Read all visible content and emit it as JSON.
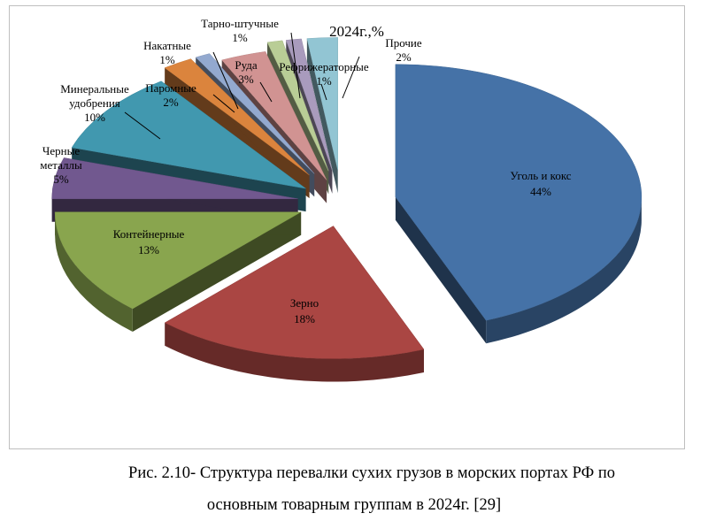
{
  "chart_data": {
    "type": "pie",
    "title": "2024г.,%",
    "start_angle_deg": 90,
    "slices": [
      {
        "label": "Уголь и кокс",
        "value": 44,
        "value_label": "44%",
        "color": "#4572a7"
      },
      {
        "label": "Зерно",
        "value": 18,
        "value_label": "18%",
        "color": "#aa4643"
      },
      {
        "label": "Контейнерные",
        "value": 13,
        "value_label": "13%",
        "color": "#89a54e"
      },
      {
        "label": "Черные металлы",
        "value": 5,
        "value_label": "5%",
        "color": "#71588f"
      },
      {
        "label": "Минеральные удобрения",
        "value": 10,
        "value_label": "10%",
        "color": "#4198af"
      },
      {
        "label": "Паромные",
        "value": 2,
        "value_label": "2%",
        "color": "#db843d"
      },
      {
        "label": "Накатные",
        "value": 1,
        "value_label": "1%",
        "color": "#93a9cf"
      },
      {
        "label": "Руда",
        "value": 3,
        "value_label": "3%",
        "color": "#d19392"
      },
      {
        "label": "Тарно-штучные",
        "value": 1,
        "value_label": "1%",
        "color": "#b9cd96"
      },
      {
        "label": "Рефрижераторные",
        "value": 1,
        "value_label": "1%",
        "color": "#a99bbd"
      },
      {
        "label": "Прочие",
        "value": 2,
        "value_label": "2%",
        "color": "#92c5d3"
      }
    ]
  },
  "caption": {
    "line1": "Рис. 2.10- Структура перевалки сухих грузов в морских портах РФ по",
    "line2": "основным товарным группам в 2024г. [29]"
  }
}
